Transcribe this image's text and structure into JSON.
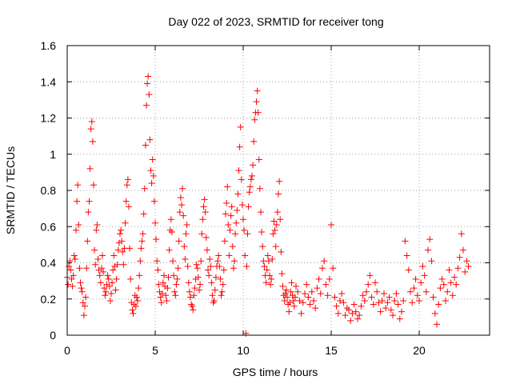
{
  "chart_data": {
    "type": "scatter",
    "title": "Day 022 of 2023, SRMTID for receiver tong",
    "xlabel": "GPS time / hours",
    "ylabel": "SRMTID / TECUs",
    "xlim": [
      0,
      24
    ],
    "ylim": [
      0,
      1.6
    ],
    "grid": true,
    "marker": "+",
    "marker_color": "#ff0000",
    "xticks": [
      0,
      5,
      10,
      15,
      20
    ],
    "xtick_labels": [
      "0",
      "5",
      "10",
      "15",
      "20"
    ],
    "yticks": [
      0,
      0.2,
      0.4,
      0.6,
      0.8,
      1.0,
      1.2,
      1.4,
      1.6
    ],
    "ytick_labels": [
      "0",
      "0.2",
      "0.4",
      "0.6",
      "0.8",
      "1",
      "1.2",
      "1.4",
      "1.6"
    ],
    "series": [
      {
        "name": "SRMTID",
        "color": "#ff0000",
        "x": [
          0.0,
          0.05,
          0.1,
          0.15,
          0.2,
          0.25,
          0.3,
          0.35,
          0.4,
          0.45,
          0.5,
          0.55,
          0.6,
          0.65,
          0.7,
          0.75,
          0.8,
          0.85,
          0.9,
          0.95,
          1.0,
          1.05,
          1.1,
          1.15,
          1.2,
          1.25,
          1.3,
          1.35,
          1.4,
          1.45,
          1.5,
          1.55,
          1.6,
          1.65,
          1.7,
          1.75,
          1.8,
          1.85,
          1.9,
          1.95,
          2.0,
          2.05,
          2.1,
          2.15,
          2.2,
          2.25,
          2.3,
          2.35,
          2.4,
          2.45,
          2.5,
          2.55,
          2.6,
          2.65,
          2.7,
          2.75,
          2.8,
          2.85,
          2.9,
          2.95,
          3.0,
          3.05,
          3.1,
          3.15,
          3.2,
          3.25,
          3.3,
          3.35,
          3.4,
          3.45,
          3.5,
          3.55,
          3.6,
          3.65,
          3.7,
          3.75,
          3.8,
          3.85,
          3.9,
          3.95,
          4.0,
          4.05,
          4.1,
          4.15,
          4.2,
          4.25,
          4.3,
          4.35,
          4.4,
          4.45,
          4.5,
          4.55,
          4.6,
          4.65,
          4.7,
          4.75,
          4.8,
          4.85,
          4.9,
          4.95,
          5.0,
          5.05,
          5.1,
          5.15,
          5.2,
          5.25,
          5.3,
          5.35,
          5.4,
          5.45,
          5.5,
          5.55,
          5.6,
          5.65,
          5.7,
          5.75,
          5.8,
          5.85,
          5.9,
          5.95,
          6.0,
          6.05,
          6.1,
          6.15,
          6.2,
          6.25,
          6.3,
          6.35,
          6.4,
          6.45,
          6.5,
          6.55,
          6.6,
          6.65,
          6.7,
          6.75,
          6.8,
          6.85,
          6.9,
          6.95,
          7.0,
          7.05,
          7.1,
          7.15,
          7.2,
          7.25,
          7.3,
          7.35,
          7.4,
          7.45,
          7.5,
          7.55,
          7.6,
          7.65,
          7.7,
          7.75,
          7.8,
          7.85,
          7.9,
          7.95,
          8.0,
          8.05,
          8.1,
          8.15,
          8.2,
          8.25,
          8.3,
          8.35,
          8.4,
          8.45,
          8.5,
          8.55,
          8.6,
          8.65,
          8.7,
          8.75,
          8.8,
          8.85,
          8.9,
          8.95,
          9.0,
          9.05,
          9.1,
          9.15,
          9.2,
          9.25,
          9.3,
          9.35,
          9.4,
          9.45,
          9.5,
          9.55,
          9.6,
          9.65,
          9.7,
          9.75,
          9.8,
          9.85,
          9.9,
          9.95,
          10.0,
          10.05,
          10.1,
          10.15,
          10.2,
          10.25,
          10.3,
          10.35,
          10.4,
          10.45,
          10.5,
          10.55,
          10.6,
          10.65,
          10.7,
          10.75,
          10.8,
          10.85,
          10.9,
          10.95,
          11.0,
          11.05,
          11.1,
          11.15,
          11.2,
          11.25,
          11.3,
          11.35,
          11.4,
          11.45,
          11.5,
          11.55,
          11.6,
          11.65,
          11.7,
          11.75,
          11.8,
          11.85,
          11.9,
          11.95,
          12.0,
          12.05,
          12.1,
          12.15,
          12.2,
          12.25,
          12.3,
          12.35,
          12.4,
          12.45,
          12.5,
          12.55,
          12.6,
          12.65,
          12.7,
          12.75,
          12.8,
          12.85,
          12.9,
          12.95,
          13.0,
          13.1,
          13.2,
          13.3,
          13.4,
          13.5,
          13.6,
          13.7,
          13.8,
          13.9,
          14.0,
          14.1,
          14.2,
          14.3,
          14.4,
          14.5,
          14.6,
          14.7,
          14.8,
          14.9,
          15.0,
          15.1,
          15.2,
          15.3,
          15.4,
          15.5,
          15.6,
          15.7,
          15.8,
          15.9,
          16.0,
          16.1,
          16.2,
          16.3,
          16.4,
          16.5,
          16.6,
          16.7,
          16.8,
          16.9,
          17.0,
          17.1,
          17.2,
          17.3,
          17.4,
          17.5,
          17.6,
          17.7,
          17.8,
          17.9,
          18.0,
          18.1,
          18.2,
          18.3,
          18.4,
          18.5,
          18.6,
          18.7,
          18.8,
          18.9,
          19.0,
          19.1,
          19.2,
          19.3,
          19.4,
          19.5,
          19.6,
          19.7,
          19.8,
          19.9,
          20.0,
          20.1,
          20.2,
          20.3,
          20.4,
          20.5,
          20.6,
          20.7,
          20.8,
          20.9,
          21.0,
          21.1,
          21.2,
          21.3,
          21.4,
          21.5,
          21.6,
          21.7,
          21.8,
          21.9,
          22.0,
          22.1,
          22.2,
          22.3,
          22.4,
          22.5,
          22.6,
          22.7,
          22.8
        ],
        "y": [
          0.32,
          0.28,
          0.38,
          0.41,
          0.36,
          0.31,
          0.27,
          0.33,
          0.44,
          0.42,
          0.58,
          0.74,
          0.83,
          0.61,
          0.37,
          0.29,
          0.26,
          0.24,
          0.18,
          0.11,
          0.16,
          0.21,
          0.37,
          0.52,
          0.68,
          0.74,
          0.92,
          1.14,
          1.18,
          1.07,
          0.83,
          0.47,
          0.39,
          0.58,
          0.61,
          0.42,
          0.36,
          0.33,
          0.29,
          0.37,
          0.44,
          0.35,
          0.26,
          0.22,
          0.24,
          0.28,
          0.33,
          0.31,
          0.27,
          0.19,
          0.23,
          0.29,
          0.36,
          0.44,
          0.38,
          0.25,
          0.31,
          0.39,
          0.47,
          0.51,
          0.56,
          0.58,
          0.52,
          0.46,
          0.39,
          0.48,
          0.62,
          0.74,
          0.83,
          0.86,
          0.71,
          0.48,
          0.31,
          0.18,
          0.14,
          0.12,
          0.17,
          0.22,
          0.16,
          0.21,
          0.19,
          0.26,
          0.33,
          0.41,
          0.48,
          0.52,
          0.56,
          0.67,
          0.81,
          1.05,
          1.27,
          1.39,
          1.43,
          1.33,
          1.08,
          0.91,
          0.84,
          0.97,
          0.88,
          0.74,
          0.62,
          0.53,
          0.41,
          0.36,
          0.28,
          0.24,
          0.21,
          0.18,
          0.23,
          0.29,
          0.33,
          0.27,
          0.22,
          0.19,
          0.26,
          0.32,
          0.47,
          0.58,
          0.64,
          0.57,
          0.41,
          0.33,
          0.24,
          0.22,
          0.28,
          0.31,
          0.37,
          0.52,
          0.68,
          0.76,
          0.72,
          0.81,
          0.66,
          0.49,
          0.42,
          0.56,
          0.61,
          0.38,
          0.29,
          0.24,
          0.21,
          0.17,
          0.16,
          0.14,
          0.22,
          0.26,
          0.31,
          0.39,
          0.37,
          0.32,
          0.25,
          0.28,
          0.41,
          0.56,
          0.64,
          0.71,
          0.75,
          0.68,
          0.54,
          0.47,
          0.36,
          0.33,
          0.42,
          0.38,
          0.29,
          0.22,
          0.18,
          0.19,
          0.25,
          0.32,
          0.38,
          0.41,
          0.44,
          0.38,
          0.31,
          0.22,
          0.24,
          0.28,
          0.36,
          0.52,
          0.67,
          0.73,
          0.82,
          0.61,
          0.44,
          0.58,
          0.66,
          0.71,
          0.49,
          0.37,
          0.41,
          0.56,
          0.62,
          0.69,
          0.78,
          0.91,
          1.04,
          1.15,
          0.86,
          0.72,
          0.64,
          0.58,
          0.44,
          0.01,
          0.38,
          0.56,
          0.71,
          0.79,
          0.82,
          0.86,
          0.88,
          0.94,
          1.07,
          1.19,
          1.23,
          1.29,
          1.35,
          1.23,
          0.97,
          0.81,
          0.68,
          0.57,
          0.49,
          0.41,
          0.38,
          0.33,
          0.29,
          0.36,
          0.44,
          0.41,
          0.33,
          0.28,
          0.31,
          0.42,
          0.56,
          0.63,
          0.58,
          0.49,
          0.61,
          0.68,
          0.78,
          0.85,
          0.64,
          0.46,
          0.34,
          0.27,
          0.22,
          0.19,
          0.23,
          0.25,
          0.21,
          0.17,
          0.13,
          0.18,
          0.24,
          0.29,
          0.22,
          0.19,
          0.16,
          0.21,
          0.27,
          0.24,
          0.19,
          0.12,
          0.18,
          0.23,
          0.28,
          0.21,
          0.17,
          0.24,
          0.19,
          0.15,
          0.26,
          0.31,
          0.23,
          0.37,
          0.41,
          0.28,
          0.22,
          0.31,
          0.61,
          0.37,
          0.21,
          0.16,
          0.12,
          0.19,
          0.23,
          0.18,
          0.11,
          0.15,
          0.14,
          0.08,
          0.12,
          0.17,
          0.13,
          0.09,
          0.11,
          0.16,
          0.22,
          0.19,
          0.24,
          0.28,
          0.33,
          0.21,
          0.17,
          0.29,
          0.24,
          0.18,
          0.13,
          0.19,
          0.23,
          0.15,
          0.18,
          0.21,
          0.14,
          0.11,
          0.19,
          0.23,
          0.17,
          0.09,
          0.13,
          0.19,
          0.52,
          0.44,
          0.36,
          0.24,
          0.18,
          0.26,
          0.31,
          0.22,
          0.19,
          0.29,
          0.38,
          0.33,
          0.24,
          0.47,
          0.53,
          0.41,
          0.21,
          0.12,
          0.06,
          0.17,
          0.26,
          0.31,
          0.28,
          0.19,
          0.24,
          0.36,
          0.29,
          0.22,
          0.32,
          0.28,
          0.37,
          0.43,
          0.56,
          0.47,
          0.35,
          0.41,
          0.38
        ]
      }
    ]
  }
}
